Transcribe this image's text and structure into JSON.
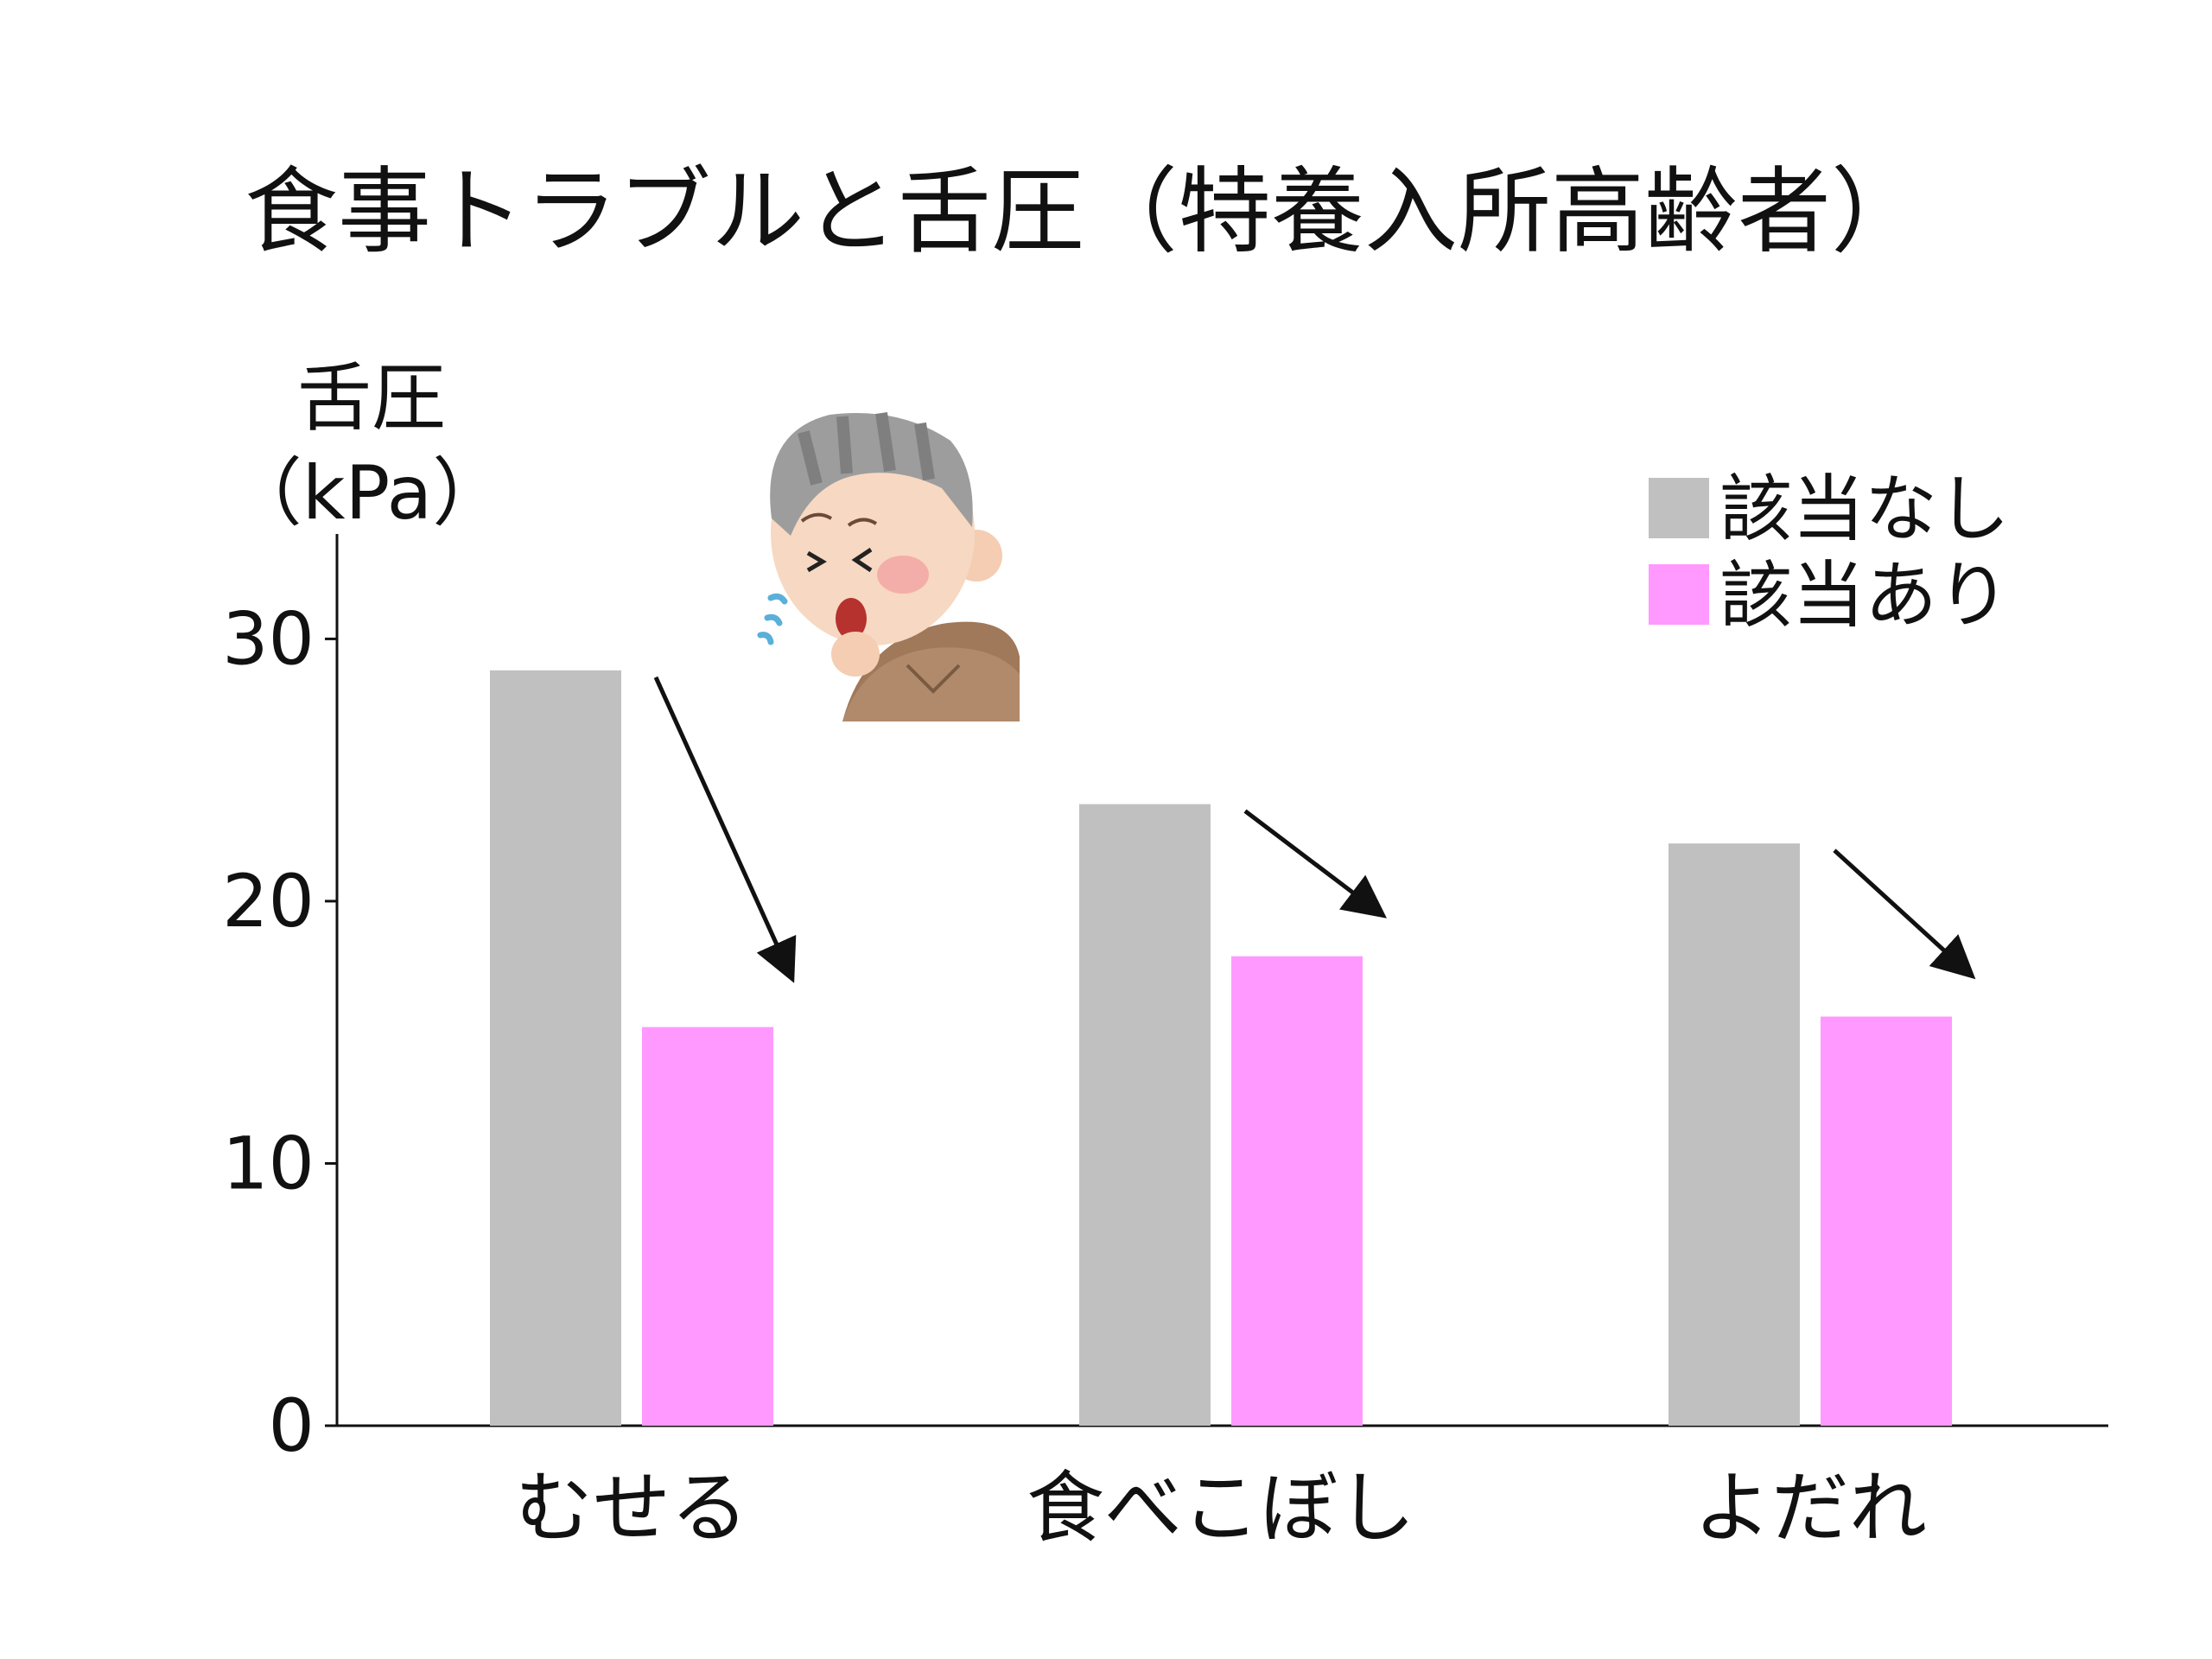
{
  "chart_data": {
    "type": "bar",
    "title": "食事トラブルと舌圧（特養入所高齢者）",
    "ylabel": "舌圧",
    "yunit": "（kPa）",
    "xlabel": "",
    "categories": [
      "むせる",
      "食べこぼし",
      "よだれ"
    ],
    "series": [
      {
        "name": "該当なし",
        "color": "#c0c0c0",
        "values": [
          28.8,
          23.7,
          22.2
        ]
      },
      {
        "name": "該当あり",
        "color": "#ff99ff",
        "values": [
          15.2,
          17.9,
          15.6
        ]
      }
    ],
    "ylim": [
      0,
      34
    ],
    "yticks": [
      0,
      10,
      20,
      30
    ],
    "grid": false,
    "legend": "top-right",
    "annotations": "decreasing arrow from 該当なし bar to 該当あり bar in each category",
    "illustration": "coughing-elderly-man-icon"
  }
}
